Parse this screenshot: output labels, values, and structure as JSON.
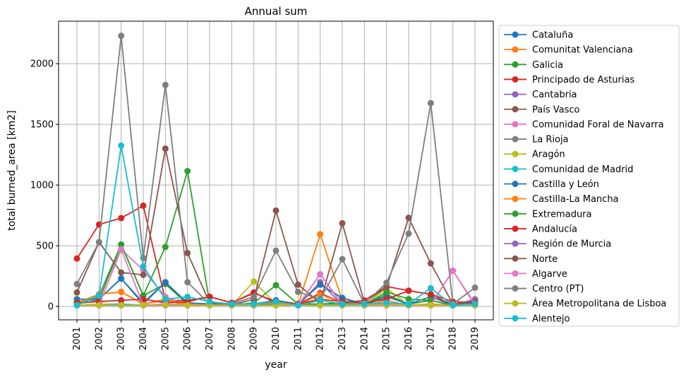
{
  "chart_data": {
    "type": "line",
    "title": "Annual sum",
    "xlabel": "year",
    "ylabel": "total burned_area [km2]",
    "x": [
      2001,
      2002,
      2003,
      2004,
      2005,
      2006,
      2007,
      2008,
      2009,
      2010,
      2011,
      2012,
      2013,
      2014,
      2015,
      2016,
      2017,
      2018,
      2019
    ],
    "x_tick_labels": [
      "2001",
      "2002",
      "2003",
      "2004",
      "2005",
      "2006",
      "2007",
      "2008",
      "2009",
      "2010",
      "2011",
      "2012",
      "2013",
      "2014",
      "2015",
      "2016",
      "2017",
      "2018",
      "2019"
    ],
    "ylim": [
      -110,
      2350
    ],
    "y_ticks": [
      0,
      500,
      1000,
      1500,
      2000
    ],
    "y_tick_labels": [
      "0",
      "500",
      "1000",
      "1500",
      "2000"
    ],
    "grid": true,
    "legend_position": "outside right",
    "series": [
      {
        "name": "Cataluña",
        "color": "#1f77b4",
        "values": [
          40,
          60,
          230,
          20,
          200,
          20,
          10,
          10,
          10,
          50,
          20,
          180,
          70,
          10,
          80,
          20,
          50,
          10,
          50
        ]
      },
      {
        "name": "Comunitat Valenciana",
        "color": "#ff7f0e",
        "values": [
          30,
          100,
          120,
          20,
          50,
          10,
          10,
          10,
          20,
          30,
          10,
          595,
          50,
          10,
          100,
          10,
          10,
          10,
          10
        ]
      },
      {
        "name": "Galicia",
        "color": "#2ca02c",
        "values": [
          20,
          90,
          510,
          90,
          185,
          20,
          10,
          10,
          10,
          20,
          10,
          10,
          20,
          10,
          100,
          20,
          50,
          10,
          10
        ]
      },
      {
        "name": "Principado de Asturias",
        "color": "#d62728",
        "values": [
          395,
          675,
          728,
          830,
          50,
          50,
          80,
          30,
          115,
          30,
          20,
          110,
          30,
          50,
          165,
          130,
          100,
          10,
          10
        ]
      },
      {
        "name": "Cantabria",
        "color": "#9467bd",
        "values": [
          10,
          10,
          10,
          10,
          10,
          10,
          10,
          10,
          10,
          10,
          10,
          200,
          10,
          10,
          10,
          10,
          10,
          10,
          60
        ]
      },
      {
        "name": "País Vasco",
        "color": "#8c564b",
        "values": [
          10,
          10,
          10,
          10,
          10,
          10,
          10,
          10,
          10,
          10,
          10,
          10,
          10,
          10,
          10,
          10,
          10,
          10,
          10
        ]
      },
      {
        "name": "Comunidad Foral de Navarra",
        "color": "#e377c2",
        "values": [
          20,
          80,
          470,
          300,
          80,
          10,
          10,
          10,
          20,
          30,
          10,
          265,
          20,
          10,
          20,
          10,
          10,
          295,
          20
        ]
      },
      {
        "name": "La Rioja",
        "color": "#7f7f7f",
        "values": [
          10,
          10,
          10,
          10,
          10,
          10,
          10,
          10,
          10,
          10,
          10,
          10,
          10,
          10,
          10,
          10,
          10,
          10,
          10
        ]
      },
      {
        "name": "Aragón",
        "color": "#bcbd22",
        "values": [
          10,
          20,
          20,
          10,
          20,
          10,
          10,
          10,
          205,
          20,
          10,
          50,
          20,
          10,
          150,
          10,
          20,
          10,
          10
        ]
      },
      {
        "name": "Comunidad de Madrid",
        "color": "#17becf",
        "values": [
          10,
          10,
          20,
          10,
          20,
          10,
          10,
          10,
          10,
          10,
          10,
          20,
          10,
          10,
          10,
          10,
          10,
          10,
          10
        ]
      },
      {
        "name": "Castilla y León",
        "color": "#1f77b4",
        "values": [
          60,
          60,
          230,
          30,
          200,
          30,
          20,
          10,
          20,
          50,
          20,
          180,
          70,
          20,
          80,
          20,
          80,
          10,
          30
        ]
      },
      {
        "name": "Castilla-La Mancha",
        "color": "#ff7f0e",
        "values": [
          30,
          100,
          120,
          20,
          60,
          20,
          10,
          10,
          20,
          30,
          10,
          100,
          30,
          10,
          50,
          10,
          20,
          10,
          10
        ]
      },
      {
        "name": "Extremadura",
        "color": "#2ca02c",
        "values": [
          20,
          50,
          510,
          90,
          490,
          1115,
          30,
          10,
          30,
          175,
          20,
          20,
          30,
          10,
          120,
          60,
          50,
          10,
          20
        ]
      },
      {
        "name": "Andalucía",
        "color": "#d62728",
        "values": [
          30,
          40,
          50,
          60,
          30,
          40,
          80,
          30,
          110,
          40,
          20,
          60,
          40,
          30,
          60,
          130,
          100,
          40,
          30
        ]
      },
      {
        "name": "Región de Murcia",
        "color": "#9467bd",
        "values": [
          10,
          10,
          10,
          10,
          10,
          10,
          10,
          10,
          10,
          10,
          10,
          10,
          10,
          10,
          10,
          10,
          10,
          10,
          10
        ]
      },
      {
        "name": "Norte",
        "color": "#8c564b",
        "values": [
          115,
          530,
          280,
          260,
          1300,
          440,
          30,
          10,
          60,
          790,
          180,
          30,
          685,
          30,
          160,
          730,
          355,
          20,
          40
        ]
      },
      {
        "name": "Algarve",
        "color": "#e377c2",
        "values": [
          10,
          10,
          470,
          10,
          20,
          10,
          10,
          10,
          10,
          10,
          10,
          265,
          10,
          10,
          10,
          10,
          10,
          295,
          10
        ]
      },
      {
        "name": "Centro (PT)",
        "color": "#7f7f7f",
        "values": [
          185,
          530,
          2230,
          400,
          1825,
          200,
          20,
          20,
          80,
          460,
          120,
          60,
          390,
          20,
          195,
          600,
          1675,
          20,
          155
        ]
      },
      {
        "name": "Área Metropolitana de Lisboa",
        "color": "#bcbd22",
        "values": [
          10,
          10,
          10,
          10,
          10,
          10,
          10,
          10,
          10,
          10,
          10,
          10,
          10,
          10,
          10,
          10,
          10,
          10,
          10
        ]
      },
      {
        "name": "Alentejo",
        "color": "#17becf",
        "values": [
          10,
          90,
          1325,
          330,
          60,
          80,
          40,
          20,
          20,
          40,
          10,
          50,
          20,
          20,
          30,
          20,
          150,
          10,
          20
        ]
      }
    ]
  }
}
